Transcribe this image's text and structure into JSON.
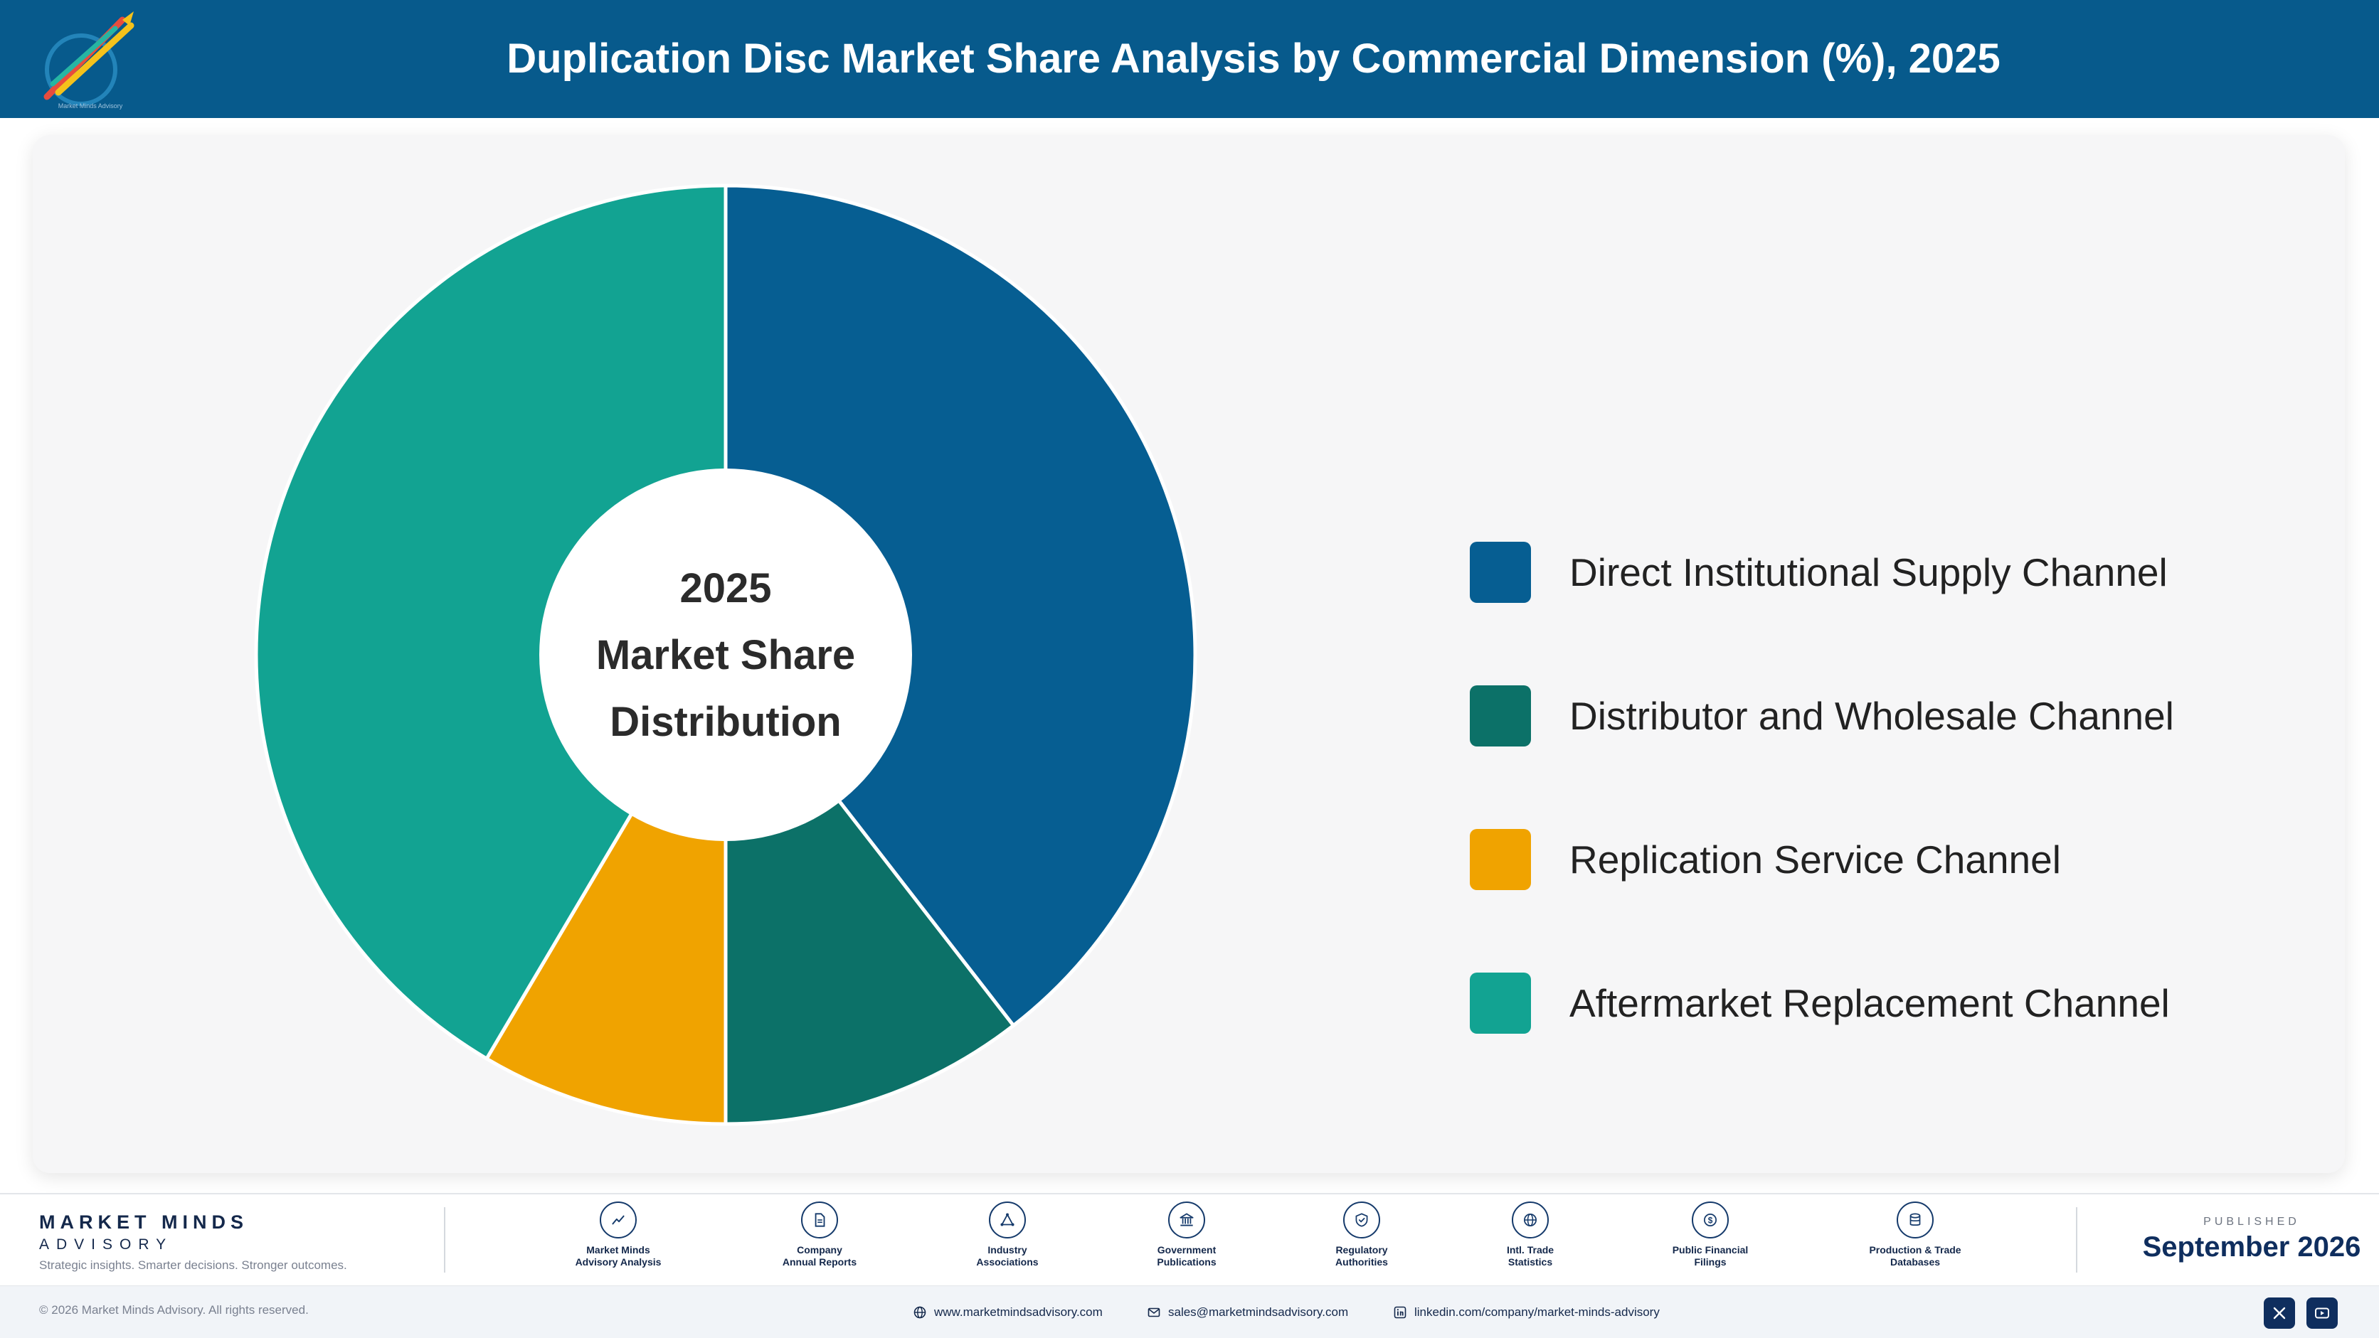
{
  "header": {
    "title": "Duplication Disc Market Share Analysis by Commercial Dimension (%), 2025",
    "logo_icon": "pencil-rocket-logo-icon",
    "logo_text": "Market Minds Advisory"
  },
  "chart_data": {
    "type": "pie",
    "variant": "donut",
    "center_label": [
      "2025",
      "Market Share",
      "Distribution"
    ],
    "categories": [
      "Direct Institutional Supply Channel",
      "Distributor and Wholesale Channel",
      "Replication Service Channel",
      "Aftermarket Replacement Channel"
    ],
    "values": [
      39.5,
      10.5,
      8.5,
      41.5
    ],
    "colors": [
      "#065e92",
      "#0c7168",
      "#f0a300",
      "#12a392"
    ],
    "legend_position": "right"
  },
  "footer": {
    "brand_name": "MARKET MINDS",
    "brand_sub": "ADVISORY",
    "tagline": "Strategic insights. Smarter decisions. Stronger outcomes.",
    "sources": [
      {
        "label": "Market Minds\nAdvisory Analysis",
        "icon": "trend-chart-icon"
      },
      {
        "label": "Company\nAnnual Reports",
        "icon": "document-icon"
      },
      {
        "label": "Industry\nAssociations",
        "icon": "network-icon"
      },
      {
        "label": "Government\nPublications",
        "icon": "government-building-icon"
      },
      {
        "label": "Regulatory\nAuthorities",
        "icon": "shield-check-icon"
      },
      {
        "label": "Intl. Trade\nStatistics",
        "icon": "globe-icon"
      },
      {
        "label": "Public Financial\nFilings",
        "icon": "coin-icon"
      },
      {
        "label": "Production & Trade\nDatabases",
        "icon": "database-icon"
      }
    ],
    "published_label": "PUBLISHED",
    "published_date": "September 2026",
    "copyright": "© 2026 Market Minds Advisory. All rights reserved.",
    "website": "www.marketmindsadvisory.com",
    "email": "sales@marketmindsadvisory.com",
    "linkedin": "linkedin.com/company/market-minds-advisory",
    "social": [
      {
        "icon": "x-icon"
      },
      {
        "icon": "youtube-icon"
      }
    ]
  }
}
